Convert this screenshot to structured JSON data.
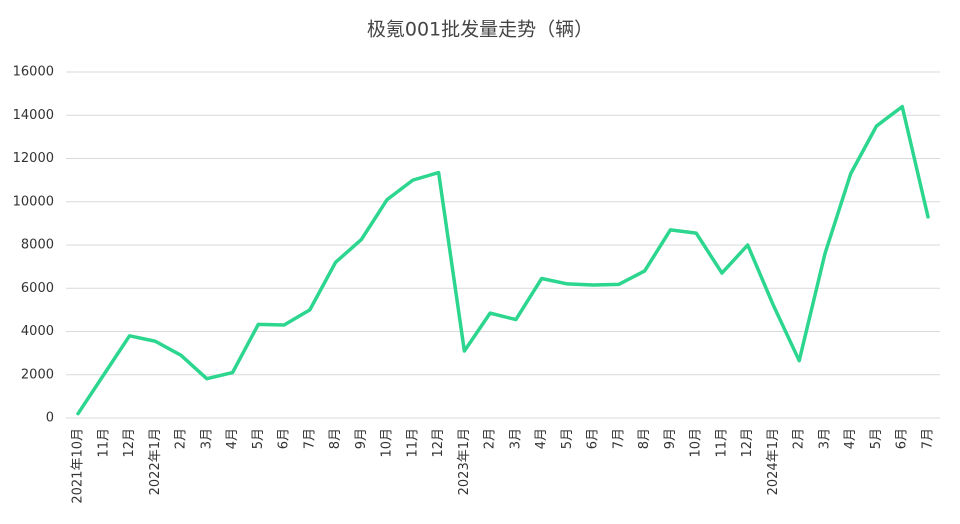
{
  "chart_data": {
    "type": "line",
    "title": "极氪001批发量走势（辆）",
    "categories": [
      "2021年10月",
      "11月",
      "12月",
      "2022年1月",
      "2月",
      "3月",
      "4月",
      "5月",
      "6月",
      "7月",
      "8月",
      "9月",
      "10月",
      "11月",
      "12月",
      "2023年1月",
      "2月",
      "3月",
      "4月",
      "5月",
      "6月",
      "7月",
      "8月",
      "9月",
      "10月",
      "11月",
      "12月",
      "2024年1月",
      "2月",
      "3月",
      "4月",
      "5月",
      "6月",
      "7月"
    ],
    "series": [
      {
        "name": "批发量",
        "color": "#2cd68e",
        "values": [
          200,
          2000,
          3800,
          3550,
          2900,
          1820,
          2100,
          4330,
          4300,
          5000,
          7200,
          8250,
          10100,
          11000,
          11350,
          3100,
          4850,
          4550,
          6450,
          6200,
          6150,
          6180,
          6800,
          8700,
          8550,
          6700,
          8000,
          5200,
          2650,
          7600,
          11300,
          13500,
          14400,
          9300
        ]
      }
    ],
    "ylim": [
      0,
      16000
    ],
    "yticks": [
      0,
      2000,
      4000,
      6000,
      8000,
      10000,
      12000,
      14000,
      16000
    ],
    "grid": true
  }
}
